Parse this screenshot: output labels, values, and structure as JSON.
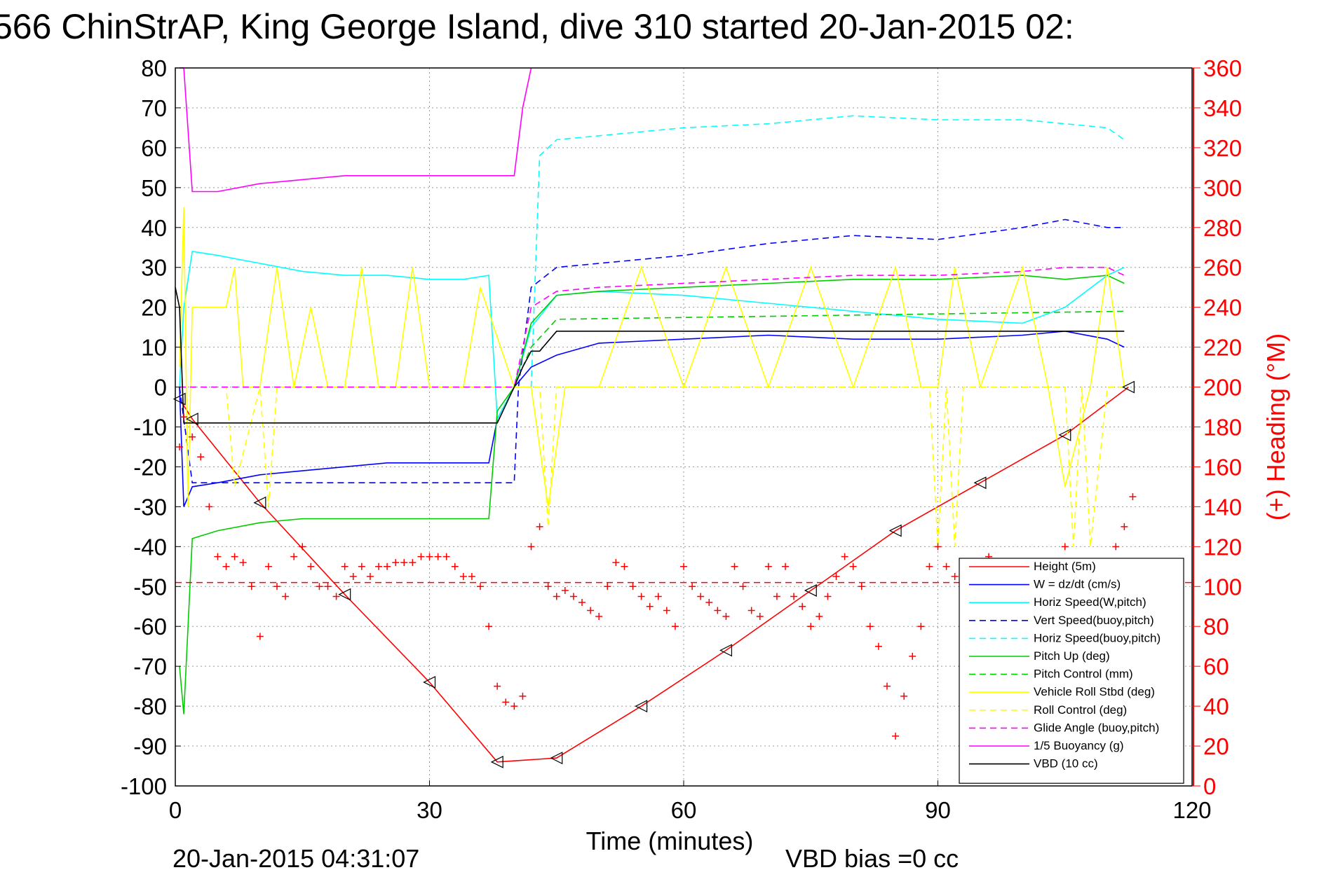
{
  "chart_data": {
    "type": "line",
    "title": "566 ChinStrAP, King George Island, dive 310 started 20-Jan-2015 02:",
    "xlabel": "Time (minutes)",
    "ylabel_right": "(+) Heading (°M)",
    "xlim": [
      0,
      120
    ],
    "ylim": [
      -100,
      80
    ],
    "y2lim": [
      0,
      360
    ],
    "x_ticks": [
      "0",
      "30",
      "60",
      "90",
      "120"
    ],
    "y_ticks": [
      "80",
      "70",
      "60",
      "50",
      "40",
      "30",
      "20",
      "10",
      "0",
      "-10",
      "-20",
      "-30",
      "-40",
      "-50",
      "-60",
      "-70",
      "-80",
      "-90",
      "-100"
    ],
    "y2_ticks": [
      "360",
      "340",
      "320",
      "300",
      "280",
      "260",
      "240",
      "220",
      "200",
      "180",
      "160",
      "140",
      "120",
      "100",
      "80",
      "60",
      "40",
      "20",
      "0"
    ],
    "grid": true,
    "legend_position": "bottom-right",
    "legend": [
      {
        "label": "Height (5m)",
        "color": "#ff0000",
        "dash": "solid"
      },
      {
        "label": "W = dz/dt (cm/s)",
        "color": "#0000ff",
        "dash": "solid"
      },
      {
        "label": "Horiz Speed(W,pitch)",
        "color": "#00ffff",
        "dash": "solid"
      },
      {
        "label": "Vert Speed(buoy,pitch)",
        "color": "#0000ff",
        "dash": "dashed"
      },
      {
        "label": "Horiz Speed(buoy,pitch)",
        "color": "#00ffff",
        "dash": "dashed"
      },
      {
        "label": "Pitch Up (deg)",
        "color": "#00cc00",
        "dash": "solid"
      },
      {
        "label": "Pitch Control (mm)",
        "color": "#00cc00",
        "dash": "dashed"
      },
      {
        "label": "Vehicle Roll Stbd (deg)",
        "color": "#ffff00",
        "dash": "solid"
      },
      {
        "label": "Roll Control (deg)",
        "color": "#ffff00",
        "dash": "dashed"
      },
      {
        "label": "Glide Angle (buoy,pitch)",
        "color": "#ff00ff",
        "dash": "dashed"
      },
      {
        "label": "1/5 Buoyancy (g)",
        "color": "#ff00ff",
        "dash": "solid"
      },
      {
        "label": "VBD (10 cc)",
        "color": "#000000",
        "dash": "solid"
      }
    ],
    "series": [
      {
        "name": "Height (5m)",
        "color": "#ff0000",
        "dash": "solid",
        "x": [
          0.5,
          2,
          10,
          20,
          30,
          38,
          45,
          55,
          65,
          75,
          85,
          95,
          105,
          112.5
        ],
        "y": [
          -3,
          -8,
          -29,
          -52,
          -74,
          -94,
          -93,
          -80,
          -66,
          -51,
          -36,
          -24,
          -12,
          0
        ]
      },
      {
        "name": "W = dz/dt (cm/s)",
        "color": "#0000ff",
        "dash": "solid",
        "x": [
          0.5,
          1,
          2,
          5,
          10,
          15,
          20,
          25,
          30,
          34,
          37,
          38,
          40,
          42,
          45,
          50,
          60,
          70,
          80,
          90,
          100,
          105,
          110,
          112
        ],
        "y": [
          0,
          -30,
          -25,
          -24,
          -22,
          -21,
          -20,
          -19,
          -19,
          -19,
          -19,
          -8,
          0,
          5,
          8,
          11,
          12,
          13,
          12,
          12,
          13,
          14,
          12,
          10
        ]
      },
      {
        "name": "Horiz Speed(W,pitch)",
        "color": "#00ffff",
        "dash": "solid",
        "x": [
          0.5,
          1,
          2,
          5,
          10,
          15,
          20,
          25,
          30,
          34,
          37,
          38,
          40,
          42,
          45,
          50,
          60,
          70,
          80,
          90,
          100,
          105,
          110,
          112
        ],
        "y": [
          0,
          20,
          34,
          33,
          31,
          29,
          28,
          28,
          27,
          27,
          28,
          -8,
          0,
          15,
          23,
          24,
          23,
          21,
          19,
          17,
          16,
          20,
          28,
          30
        ]
      },
      {
        "name": "Vert Speed(buoy,pitch)",
        "color": "#0000ff",
        "dash": "dashed",
        "x": [
          0.5,
          2,
          40,
          40.5,
          42,
          45,
          50,
          60,
          70,
          80,
          90,
          100,
          105,
          110,
          112
        ],
        "y": [
          0,
          -24,
          -24,
          0,
          25,
          30,
          31,
          33,
          36,
          38,
          37,
          40,
          42,
          40,
          40
        ]
      },
      {
        "name": "Horiz Speed(buoy,pitch)",
        "color": "#00ffff",
        "dash": "dashed",
        "x": [
          42,
          43,
          45,
          50,
          60,
          70,
          80,
          90,
          100,
          105,
          110,
          112
        ],
        "y": [
          0,
          58,
          62,
          63,
          65,
          66,
          68,
          67,
          67,
          66,
          65,
          62
        ]
      },
      {
        "name": "Pitch Up (deg)",
        "color": "#00cc00",
        "dash": "solid",
        "x": [
          0.5,
          1,
          2,
          5,
          10,
          15,
          20,
          25,
          30,
          34,
          37,
          38,
          40,
          42,
          45,
          50,
          60,
          70,
          80,
          90,
          100,
          105,
          110,
          112
        ],
        "y": [
          -70,
          -82,
          -38,
          -36,
          -34,
          -33,
          -33,
          -33,
          -33,
          -33,
          -33,
          -6,
          0,
          16,
          23,
          24,
          25,
          26,
          27,
          27,
          28,
          27,
          28,
          26
        ]
      },
      {
        "name": "Pitch Control (mm)",
        "color": "#00cc00",
        "dash": "dashed",
        "x": [
          40,
          42,
          45,
          112
        ],
        "y": [
          0,
          10,
          17,
          19
        ]
      },
      {
        "name": "Vehicle Roll Stbd (deg)",
        "color": "#ffff00",
        "dash": "solid",
        "x": [
          0.5,
          1,
          1.5,
          2,
          6,
          7,
          8,
          10,
          12,
          14,
          16,
          18,
          20,
          22,
          24,
          26,
          28,
          30,
          34,
          36,
          40,
          42,
          44,
          46,
          50,
          55,
          60,
          65,
          70,
          75,
          80,
          85,
          88,
          90,
          92,
          95,
          100,
          103,
          105,
          108,
          110,
          112
        ],
        "y": [
          5,
          45,
          -30,
          20,
          20,
          30,
          0,
          0,
          30,
          0,
          20,
          0,
          0,
          30,
          0,
          0,
          30,
          0,
          0,
          25,
          0,
          0,
          -30,
          0,
          0,
          30,
          0,
          30,
          0,
          30,
          0,
          30,
          0,
          0,
          30,
          0,
          30,
          0,
          -25,
          0,
          30,
          0
        ]
      },
      {
        "name": "Roll Control (deg)",
        "color": "#ffff00",
        "dash": "dashed",
        "x": [
          0.5,
          2,
          6,
          7,
          10,
          11,
          12,
          40,
          43,
          44,
          45,
          46,
          50,
          88,
          89,
          90,
          91,
          92,
          93,
          100,
          105,
          106,
          107,
          108,
          110,
          112
        ],
        "y": [
          0,
          0,
          0,
          -25,
          0,
          -30,
          0,
          0,
          0,
          -35,
          0,
          0,
          0,
          0,
          0,
          -40,
          0,
          -40,
          0,
          0,
          0,
          -40,
          0,
          -40,
          0,
          0
        ]
      },
      {
        "name": "Glide Angle (buoy,pitch)",
        "color": "#ff00ff",
        "dash": "dashed",
        "x": [
          0.5,
          40,
          42,
          45,
          50,
          60,
          70,
          80,
          90,
          100,
          105,
          110,
          112
        ],
        "y": [
          0,
          0,
          20,
          24,
          25,
          26,
          27,
          28,
          28,
          29,
          30,
          30,
          28
        ]
      },
      {
        "name": "1/5 Buoyancy (g)",
        "color": "#ff00ff",
        "dash": "solid",
        "x": [
          0.5,
          1,
          2,
          5,
          10,
          15,
          20,
          30,
          36,
          40,
          41,
          42
        ],
        "y": [
          80,
          80,
          49,
          49,
          51,
          52,
          53,
          53,
          53,
          53,
          70,
          80
        ]
      },
      {
        "name": "VBD (10 cc)",
        "color": "#000000",
        "dash": "solid",
        "x": [
          0,
          0.5,
          1,
          2,
          10,
          20,
          30,
          37,
          38,
          40,
          41,
          42,
          43,
          45,
          46,
          50,
          60,
          70,
          80,
          90,
          100,
          112
        ],
        "y": [
          25,
          20,
          -9,
          -9,
          -9,
          -9,
          -9,
          -9,
          -9,
          0,
          5,
          9,
          9,
          14,
          14,
          14,
          14,
          14,
          14,
          14,
          14,
          14
        ]
      },
      {
        "name": "Heading",
        "color": "#ff0000",
        "axis": "right",
        "style": "markers",
        "marker": "+",
        "x": [
          0.5,
          1,
          2,
          3,
          4,
          5,
          6,
          7,
          8,
          9,
          10,
          11,
          12,
          13,
          14,
          15,
          16,
          17,
          18,
          19,
          20,
          21,
          22,
          23,
          24,
          25,
          26,
          27,
          28,
          29,
          30,
          31,
          32,
          33,
          34,
          35,
          36,
          37,
          38,
          39,
          40,
          41,
          42,
          43,
          44,
          45,
          46,
          47,
          48,
          49,
          50,
          51,
          52,
          53,
          54,
          55,
          56,
          57,
          58,
          59,
          60,
          61,
          62,
          63,
          64,
          65,
          66,
          67,
          68,
          69,
          70,
          71,
          72,
          73,
          74,
          75,
          76,
          77,
          78,
          79,
          80,
          81,
          82,
          83,
          84,
          85,
          86,
          87,
          88,
          89,
          90,
          91,
          92,
          93,
          94,
          95,
          96,
          97,
          98,
          99,
          100,
          101,
          102,
          103,
          104,
          105,
          106,
          107,
          108,
          109,
          110,
          111,
          112,
          113
        ],
        "y": [
          170,
          185,
          175,
          165,
          140,
          115,
          110,
          115,
          112,
          100,
          75,
          110,
          100,
          95,
          115,
          120,
          110,
          100,
          100,
          95,
          110,
          105,
          110,
          105,
          110,
          110,
          112,
          112,
          112,
          115,
          115,
          115,
          115,
          110,
          105,
          105,
          100,
          80,
          50,
          42,
          40,
          45,
          120,
          130,
          100,
          95,
          98,
          95,
          92,
          88,
          85,
          100,
          112,
          110,
          100,
          95,
          90,
          95,
          88,
          80,
          110,
          100,
          95,
          92,
          88,
          85,
          110,
          100,
          88,
          85,
          110,
          95,
          110,
          95,
          90,
          80,
          85,
          95,
          105,
          115,
          110,
          100,
          80,
          70,
          50,
          25,
          45,
          65,
          80,
          110,
          120,
          110,
          105,
          95,
          90,
          110,
          115,
          100,
          95,
          100,
          110,
          95,
          110,
          100,
          80,
          120,
          110,
          110,
          90,
          95,
          85,
          120,
          130,
          145
        ]
      }
    ]
  }
}
